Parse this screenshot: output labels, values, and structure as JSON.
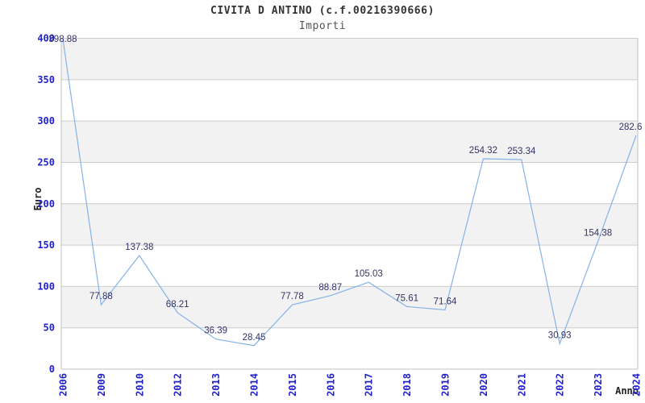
{
  "chart_data": {
    "type": "line",
    "title": "CIVITA D ANTINO (c.f.00216390666)",
    "subtitle": "Importi",
    "xlabel": "Anno",
    "ylabel": "Euro",
    "categories": [
      "2006",
      "2009",
      "2010",
      "2012",
      "2013",
      "2014",
      "2015",
      "2016",
      "2017",
      "2018",
      "2019",
      "2020",
      "2021",
      "2022",
      "2023",
      "2024"
    ],
    "values": [
      398.88,
      77.88,
      137.38,
      68.21,
      36.39,
      28.45,
      77.78,
      88.87,
      105.03,
      75.61,
      71.64,
      254.32,
      253.34,
      30.93,
      154.38,
      282.6
    ],
    "ylim": [
      0,
      400
    ],
    "ytick_step": 50,
    "yticks": [
      0,
      50,
      100,
      150,
      200,
      250,
      300,
      350,
      400
    ],
    "grid": true,
    "legend": "none",
    "colors": {
      "line": "#85b2e8",
      "tick_label": "#2222cc",
      "data_label": "#333366",
      "band_fill": "#f2f2f2",
      "grid_line": "#cccccc",
      "plot_border": "#c0c0c0",
      "title_text": "#333333",
      "subtitle_text": "#555555",
      "axis_title_text": "#222222",
      "background": "#ffffff"
    }
  }
}
